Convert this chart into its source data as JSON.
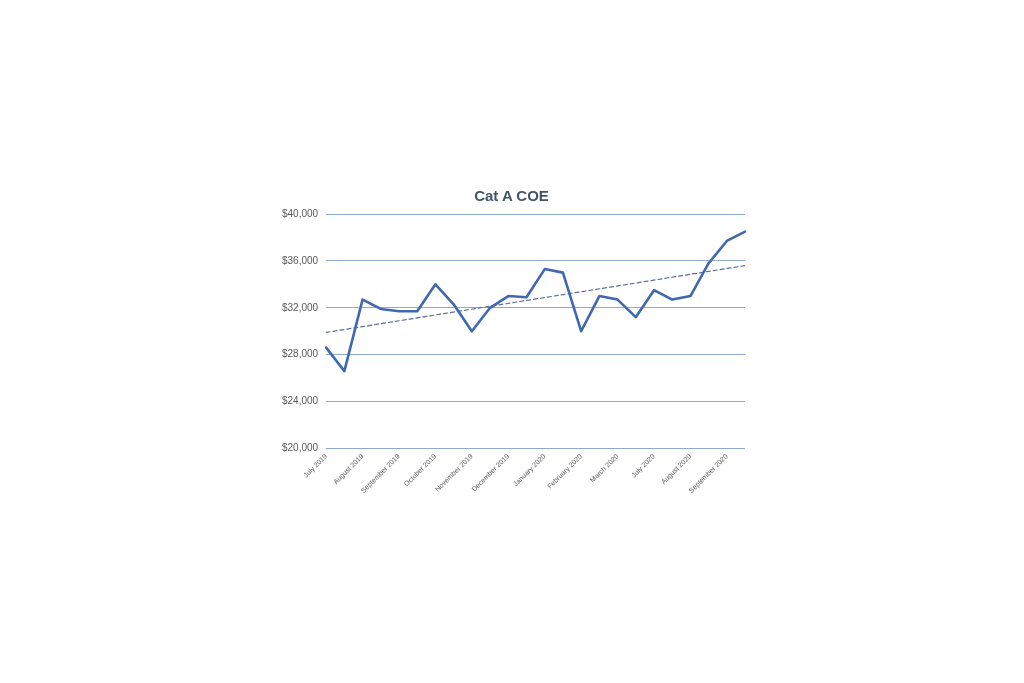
{
  "chart_data": {
    "type": "line",
    "title": "Cat A COE",
    "categories": [
      "July 2019",
      null,
      "August 2019",
      null,
      "September 2019",
      null,
      "October 2019",
      null,
      "November 2019",
      null,
      "December 2019",
      null,
      "January 2020",
      null,
      "February 2020",
      null,
      "March 2020",
      null,
      "July 2020",
      null,
      "August 2020",
      null,
      "September 2020",
      null
    ],
    "series": [
      {
        "color": "#4068b0",
        "values": [
          28600,
          26600,
          32700,
          31900,
          31700,
          31700,
          34000,
          32300,
          30000,
          32000,
          33000,
          32900,
          35300,
          35000,
          30000,
          33000,
          32700,
          31200,
          33500,
          32700,
          33000,
          35800,
          37700,
          38500
        ]
      },
      {
        "color": "#5a7099",
        "line_style": "dashed",
        "values": [
          29900,
          null,
          null,
          null,
          null,
          null,
          null,
          null,
          null,
          null,
          null,
          null,
          null,
          null,
          null,
          null,
          null,
          null,
          null,
          null,
          null,
          null,
          null,
          35600
        ]
      }
    ],
    "ylim": [
      20000,
      40000
    ],
    "yticks": [
      {
        "value": 20000,
        "label": "$20,000"
      },
      {
        "value": 24000,
        "label": "$24,000"
      },
      {
        "value": 28000,
        "label": "$28,000"
      },
      {
        "value": 32000,
        "label": "$32,000"
      },
      {
        "value": 36000,
        "label": "$36,000"
      },
      {
        "value": 40000,
        "label": "$40,000"
      }
    ],
    "grid": "y",
    "legend": false,
    "marker": "none",
    "line_style": "solid"
  }
}
